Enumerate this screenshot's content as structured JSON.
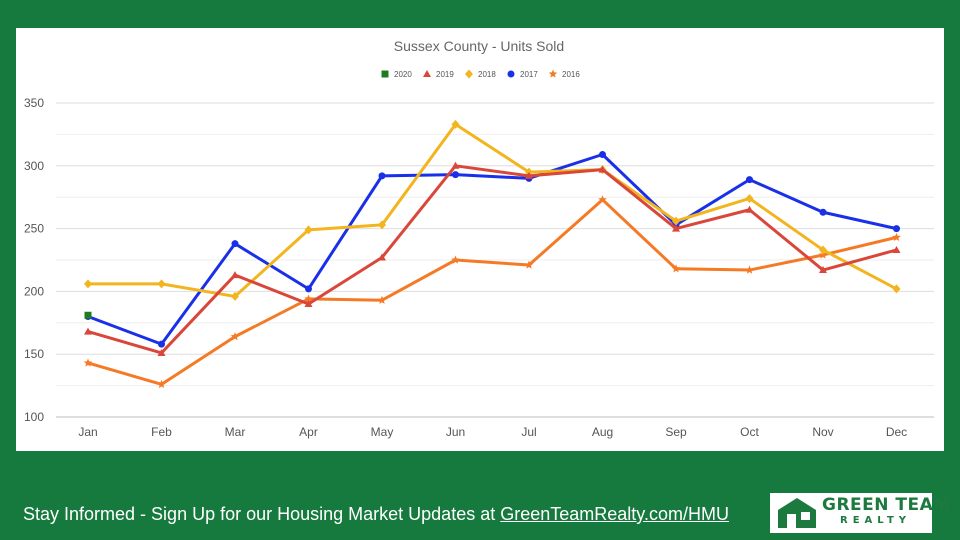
{
  "chart_data": {
    "type": "line",
    "title": "Sussex County - Units Sold",
    "categories": [
      "Jan",
      "Feb",
      "Mar",
      "Apr",
      "May",
      "Jun",
      "Jul",
      "Aug",
      "Sep",
      "Oct",
      "Nov",
      "Dec"
    ],
    "ylim": [
      100,
      350
    ],
    "yticks": [
      100,
      150,
      200,
      250,
      300,
      350
    ],
    "grid": true,
    "legend_position": "top",
    "series": [
      {
        "name": "2020",
        "color": "#1e7b1e",
        "marker": "square",
        "values": [
          181,
          null,
          null,
          null,
          null,
          null,
          null,
          null,
          null,
          null,
          null,
          null
        ]
      },
      {
        "name": "2019",
        "color": "#d9473a",
        "marker": "triangle",
        "values": [
          168,
          151,
          213,
          190,
          227,
          300,
          292,
          297,
          250,
          265,
          217,
          233
        ]
      },
      {
        "name": "2018",
        "color": "#f2b51e",
        "marker": "diamond",
        "values": [
          206,
          206,
          196,
          249,
          253,
          333,
          295,
          297,
          256,
          274,
          233,
          202
        ]
      },
      {
        "name": "2017",
        "color": "#1a30e8",
        "marker": "circle",
        "values": [
          180,
          158,
          238,
          202,
          292,
          293,
          290,
          309,
          253,
          289,
          263,
          250
        ]
      },
      {
        "name": "2016",
        "color": "#f57a25",
        "marker": "star",
        "values": [
          143,
          126,
          164,
          194,
          193,
          225,
          221,
          273,
          218,
          217,
          229,
          243
        ]
      }
    ]
  },
  "footer": {
    "text": "Stay Informed - Sign Up for our Housing Market Updates at ",
    "link": "GreenTeamRealty.com/HMU"
  },
  "logo": {
    "line1": "GREEN TEAM",
    "line2": "REALTY"
  }
}
